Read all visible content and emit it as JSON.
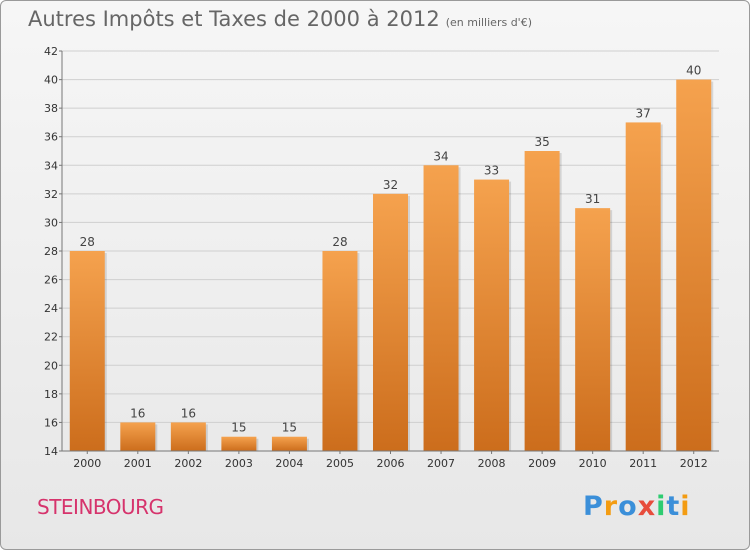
{
  "title": "Autres Impôts et Taxes de 2000 à 2012",
  "subtitle": "(en milliers d'€)",
  "commune": "STEINBOURG",
  "logo": {
    "text": "Proxiti",
    "letters": [
      {
        "char": "P",
        "color": "#3b8fd9"
      },
      {
        "char": "r",
        "color": "#f39c12"
      },
      {
        "char": "o",
        "color": "#3b8fd9"
      },
      {
        "char": "x",
        "color": "#e74c3c"
      },
      {
        "char": "i",
        "color": "#2ecc71"
      },
      {
        "char": "t",
        "color": "#3b8fd9"
      },
      {
        "char": "i",
        "color": "#f39c12"
      }
    ]
  },
  "colors": {
    "bar_top": "#f5a24e",
    "bar_bottom": "#cc6d1c",
    "grid": "#cfcfcf",
    "axis": "#777777",
    "title": "#666666",
    "commune": "#d6336c"
  },
  "chart_data": {
    "type": "bar",
    "title": "Autres Impôts et Taxes de 2000 à 2012",
    "subtitle": "(en milliers d'€)",
    "categories": [
      "2000",
      "2001",
      "2002",
      "2003",
      "2004",
      "2005",
      "2006",
      "2007",
      "2008",
      "2009",
      "2010",
      "2011",
      "2012"
    ],
    "values": [
      28,
      16,
      16,
      15,
      15,
      28,
      32,
      34,
      33,
      35,
      31,
      37,
      40
    ],
    "ylim": [
      14,
      42
    ],
    "yticks": [
      14,
      16,
      18,
      20,
      22,
      24,
      26,
      28,
      30,
      32,
      34,
      36,
      38,
      40,
      42
    ],
    "grid": true,
    "xlabel": "",
    "ylabel": ""
  }
}
